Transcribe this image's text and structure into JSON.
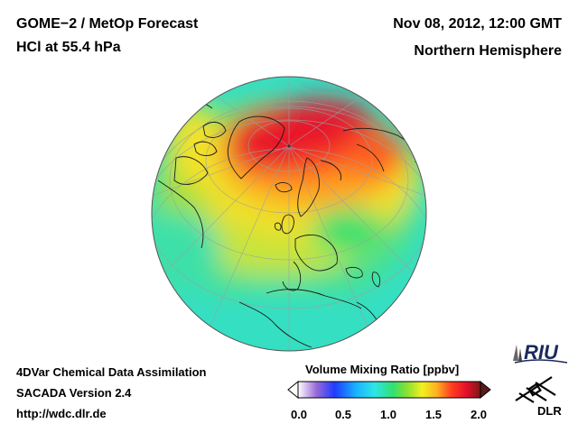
{
  "header": {
    "title": "GOME−2 / MetOp Forecast",
    "subtitle": "HCl at 55.4 hPa",
    "datetime": "Nov 08, 2012, 12:00 GMT",
    "region": "Northern Hemisphere"
  },
  "footer": {
    "line1": "4DVar Chemical Data Assimilation",
    "line2": "SACADA Version 2.4",
    "line3": "http://wdc.dlr.de"
  },
  "colorbar": {
    "title": "Volume Mixing Ratio [ppbv]",
    "ticks": [
      "0.0",
      "0.5",
      "1.0",
      "1.5",
      "2.0"
    ],
    "min": 0.0,
    "max": 2.0,
    "colors": [
      "#ffffff",
      "#9a6ad8",
      "#1e3cff",
      "#19b4ff",
      "#2ee6e6",
      "#30e070",
      "#8ee030",
      "#f0f020",
      "#ffb020",
      "#ff4020",
      "#e8102a",
      "#7a1818"
    ]
  },
  "logos": {
    "riu": "RIU",
    "dlr": "DLR"
  },
  "map": {
    "projection": "orthographic",
    "field_colors": {
      "high": "#e8182a",
      "mid_high": "#ff7a20",
      "mid": "#f2e22a",
      "mid_low": "#8ee03a",
      "low": "#30e070",
      "lowest": "#38e0c8"
    }
  }
}
